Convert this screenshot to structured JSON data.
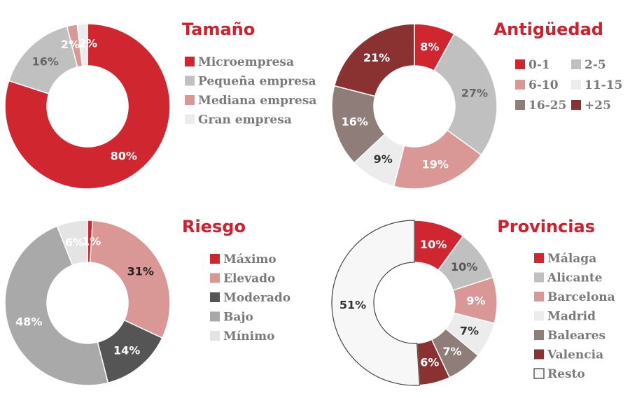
{
  "chart_data": [
    {
      "type": "pie",
      "title": "Tamaño",
      "categories": [
        "Microempresa",
        "Pequeña empresa",
        "Mediana empresa",
        "Gran empresa"
      ],
      "values": [
        80,
        16,
        2,
        2
      ],
      "labels": [
        "80%",
        "16%",
        "2%",
        "2%"
      ],
      "colors": [
        "#cf2630",
        "#c0c0c0",
        "#d99896",
        "#ececec"
      ],
      "label_colors": [
        "#ffffff",
        "#666666",
        "#ffffff",
        "#ffffff"
      ],
      "legend_columns": 1
    },
    {
      "type": "pie",
      "title": "Antigüedad",
      "categories": [
        "0-1",
        "2-5",
        "6-10",
        "11-15",
        "16-25",
        "+25"
      ],
      "values": [
        8,
        27,
        19,
        9,
        16,
        21
      ],
      "labels": [
        "8%",
        "27%",
        "19%",
        "9%",
        "16%",
        "21%"
      ],
      "colors": [
        "#cf2630",
        "#c0c0c0",
        "#d99896",
        "#ececec",
        "#8e7d79",
        "#8a3131"
      ],
      "label_colors": [
        "#ffffff",
        "#666666",
        "#ffffff",
        "#333333",
        "#ffffff",
        "#ffffff"
      ],
      "legend_columns": 2
    },
    {
      "type": "pie",
      "title": "Riesgo",
      "categories": [
        "Máximo",
        "Elevado",
        "Moderado",
        "Bajo",
        "Mínimo"
      ],
      "values": [
        1,
        31,
        14,
        48,
        6
      ],
      "labels": [
        "1%",
        "31%",
        "14%",
        "48%",
        "6%"
      ],
      "colors": [
        "#cf2630",
        "#d99896",
        "#555555",
        "#a9a9a9",
        "#e4e4e4"
      ],
      "label_colors": [
        "#ffffff",
        "#222222",
        "#ffffff",
        "#ffffff",
        "#ffffff"
      ],
      "legend_columns": 1
    },
    {
      "type": "pie",
      "title": "Provincias",
      "categories": [
        "Málaga",
        "Alicante",
        "Barcelona",
        "Madrid",
        "Baleares",
        "Valencia",
        "Resto"
      ],
      "values": [
        10,
        10,
        9,
        7,
        7,
        6,
        51
      ],
      "labels": [
        "10%",
        "10%",
        "9%",
        "7%",
        "7%",
        "6%",
        "51%"
      ],
      "colors": [
        "#cf2630",
        "#c0c0c0",
        "#d99896",
        "#ececec",
        "#8e7d79",
        "#8a3131",
        "#f7f7f7"
      ],
      "label_colors": [
        "#ffffff",
        "#555555",
        "#ffffff",
        "#333333",
        "#ffffff",
        "#ffffff",
        "#333333"
      ],
      "legend_columns": 1
    }
  ]
}
